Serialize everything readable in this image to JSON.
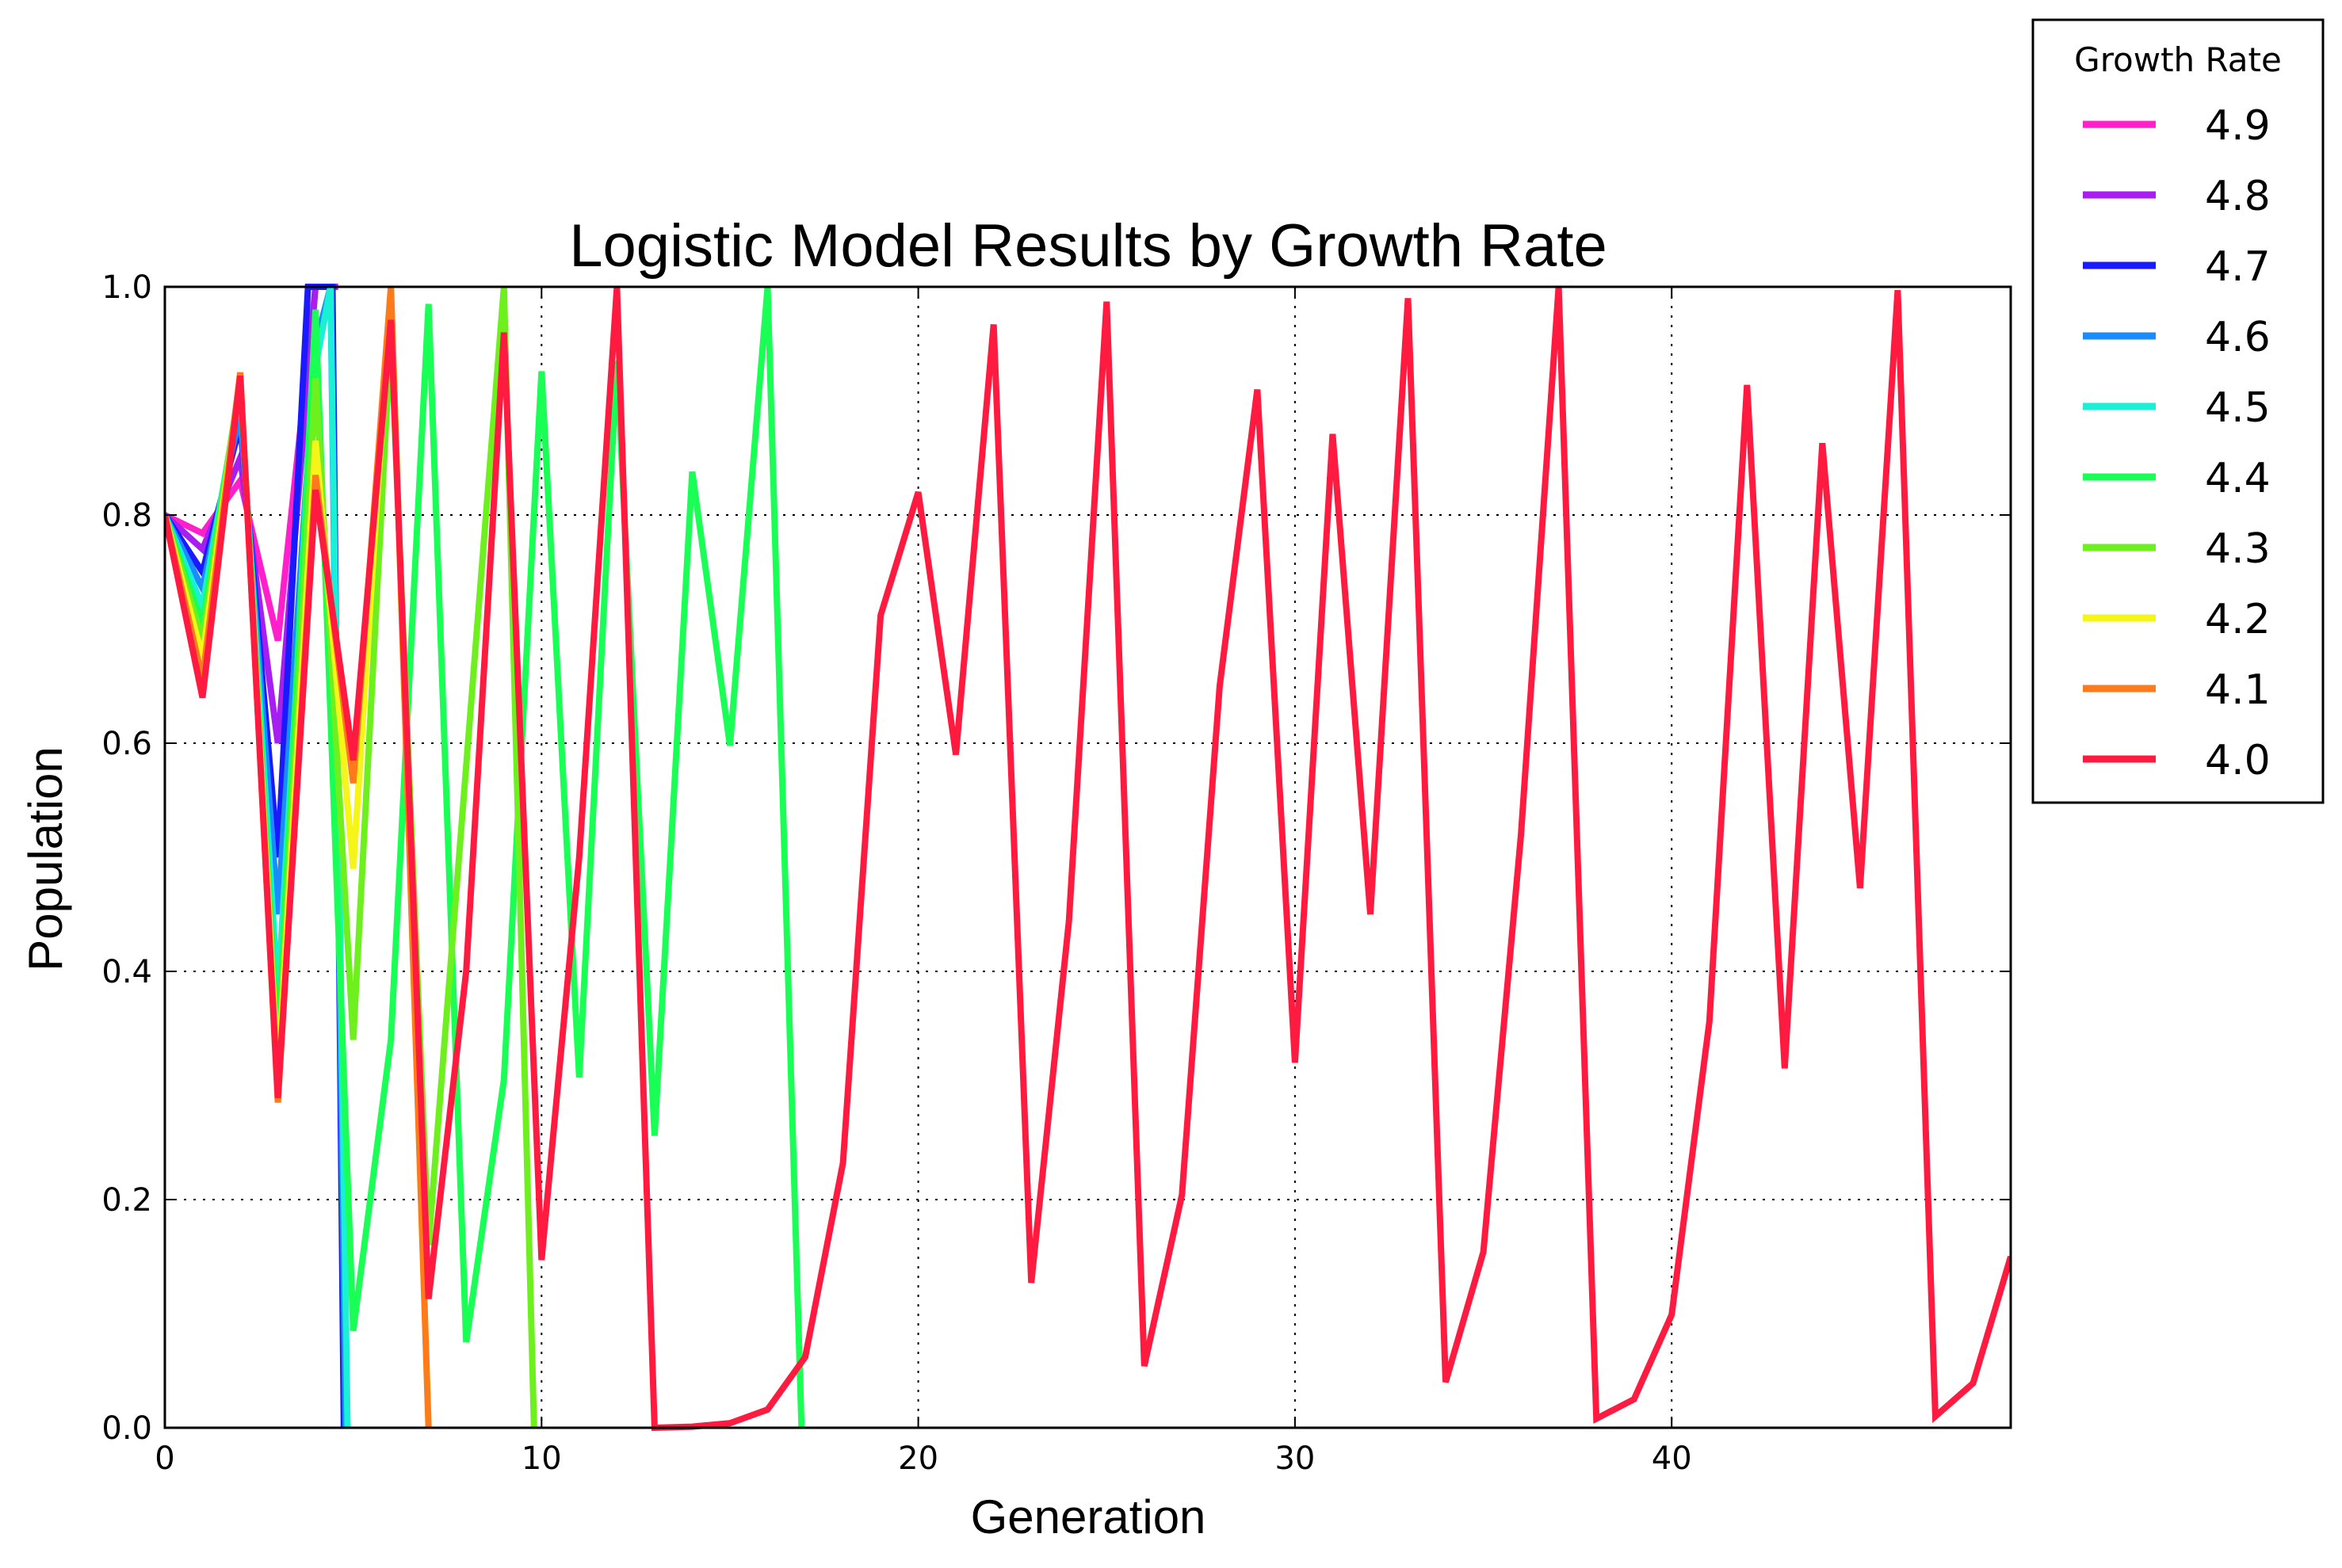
{
  "chart_data": {
    "type": "line",
    "title": "Logistic Model Results by Growth Rate",
    "xlabel": "Generation",
    "ylabel": "Population",
    "xlim": [
      0,
      49
    ],
    "ylim": [
      0.0,
      1.0
    ],
    "xticks": [
      "0",
      "10",
      "20",
      "30",
      "40"
    ],
    "xtick_values": [
      0,
      10,
      20,
      30,
      40
    ],
    "yticks": [
      "0.0",
      "0.2",
      "0.4",
      "0.6",
      "0.8",
      "1.0"
    ],
    "ytick_values": [
      0.0,
      0.2,
      0.4,
      0.6,
      0.8,
      1.0
    ],
    "grid": true,
    "legend": {
      "title": "Growth Rate",
      "placement": "outside upper right"
    },
    "series": [
      {
        "name": "4.9",
        "color": "#ff1fcb",
        "x": [
          0,
          1,
          2,
          3,
          4,
          4.6
        ],
        "y": [
          0.8,
          0.784,
          0.83,
          0.69,
          1.0,
          1.0
        ]
      },
      {
        "name": "4.8",
        "color": "#a71ff0",
        "x": [
          0,
          1,
          2,
          3,
          4,
          4.6
        ],
        "y": [
          0.8,
          0.77,
          0.85,
          0.6,
          1.0,
          1.0
        ]
      },
      {
        "name": "4.7",
        "color": "#1a1aff",
        "x": [
          0,
          1,
          2,
          3,
          3.8,
          4.45,
          4.75
        ],
        "y": [
          0.8,
          0.75,
          0.88,
          0.5,
          1.0,
          1.0,
          0.0
        ]
      },
      {
        "name": "4.6",
        "color": "#1a8cff",
        "x": [
          0,
          1,
          2,
          3,
          4,
          4.4,
          4.8
        ],
        "y": [
          0.8,
          0.736,
          0.89,
          0.45,
          0.95,
          1.0,
          0.0
        ]
      },
      {
        "name": "4.5",
        "color": "#1af0d6",
        "x": [
          0,
          1,
          2,
          3,
          4,
          4.4,
          4.85
        ],
        "y": [
          0.8,
          0.72,
          0.91,
          0.38,
          0.93,
          1.0,
          0.0
        ]
      },
      {
        "name": "4.4",
        "color": "#1aff55",
        "x": [
          0,
          1,
          2,
          3,
          4,
          5,
          6,
          7,
          8,
          9,
          10,
          11,
          12,
          13,
          14,
          15,
          16,
          16.9
        ],
        "y": [
          0.8,
          0.704,
          0.917,
          0.335,
          0.98,
          0.085,
          0.34,
          0.985,
          0.075,
          0.305,
          0.926,
          0.307,
          0.935,
          0.256,
          0.838,
          0.598,
          1.0,
          0.0
        ]
      },
      {
        "name": "4.3",
        "color": "#6ef01f",
        "x": [
          0,
          1,
          2,
          3,
          4,
          5,
          6,
          7,
          8,
          9,
          9.8
        ],
        "y": [
          0.8,
          0.69,
          0.92,
          0.31,
          0.92,
          0.34,
          0.96,
          0.16,
          0.58,
          1.0,
          0.0
        ]
      },
      {
        "name": "4.2",
        "color": "#f5f51a",
        "x": [
          0,
          1,
          2,
          3,
          4,
          5,
          6,
          7
        ],
        "y": [
          0.8,
          0.675,
          0.921,
          0.306,
          0.865,
          0.49,
          1.0,
          0.0
        ]
      },
      {
        "name": "4.1",
        "color": "#ff7a1a",
        "x": [
          0,
          1,
          2,
          3,
          4,
          5,
          6,
          7
        ],
        "y": [
          0.8,
          0.656,
          0.925,
          0.285,
          0.835,
          0.565,
          1.0,
          0.0
        ]
      },
      {
        "name": "4.0",
        "color": "#ff1a40",
        "x": [
          0,
          1,
          2,
          3,
          4,
          5,
          6,
          7,
          8,
          9,
          10,
          11,
          12,
          13,
          14,
          15,
          16,
          17,
          18,
          19,
          20,
          21,
          22,
          23,
          24,
          25,
          26,
          27,
          28,
          29,
          30,
          31,
          32,
          33,
          34,
          35,
          36,
          37,
          38,
          39,
          40,
          41,
          42,
          43,
          44,
          45,
          46,
          47,
          48,
          49
        ],
        "y": [
          0.8,
          0.64,
          0.922,
          0.289,
          0.822,
          0.585,
          0.971,
          0.113,
          0.4,
          0.96,
          0.147,
          0.5,
          1.0,
          0.0,
          0.001,
          0.004,
          0.016,
          0.062,
          0.232,
          0.712,
          0.82,
          0.59,
          0.967,
          0.127,
          0.444,
          0.987,
          0.054,
          0.204,
          0.65,
          0.91,
          0.32,
          0.871,
          0.45,
          0.99,
          0.04,
          0.154,
          0.52,
          1.0,
          0.008,
          0.025,
          0.099,
          0.356,
          0.914,
          0.315,
          0.863,
          0.473,
          0.997,
          0.01,
          0.039,
          0.15
        ]
      }
    ]
  }
}
